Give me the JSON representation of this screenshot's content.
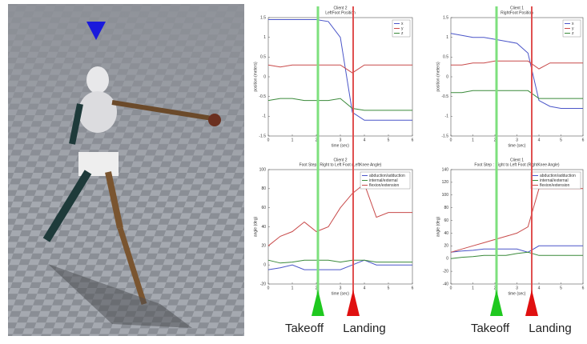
{
  "chart_data": [
    {
      "type": "line",
      "title": "Client 2",
      "subtitle": "LeftFoot Position",
      "xlabel": "time (sec)",
      "ylabel": "position (meters)",
      "x": [
        0,
        0.5,
        1,
        1.5,
        2,
        2.5,
        3,
        3.5,
        4,
        4.5,
        5,
        5.5,
        6
      ],
      "xlim": [
        0,
        6
      ],
      "xticks": [
        0,
        1,
        2,
        3,
        4,
        5,
        6
      ],
      "ylim": [
        -1.5,
        1.5
      ],
      "yticks": [
        -1.5,
        -1,
        -0.5,
        0,
        0.5,
        1,
        1.5
      ],
      "series": [
        {
          "name": "x",
          "color": "#4a55c8",
          "values": [
            1.45,
            1.45,
            1.45,
            1.45,
            1.45,
            1.4,
            1.0,
            -0.9,
            -1.1,
            -1.1,
            -1.1,
            -1.1,
            -1.1
          ]
        },
        {
          "name": "y",
          "color": "#c84a4a",
          "values": [
            0.3,
            0.25,
            0.3,
            0.3,
            0.3,
            0.3,
            0.3,
            0.1,
            0.3,
            0.3,
            0.3,
            0.3,
            0.3
          ]
        },
        {
          "name": "z",
          "color": "#3a8a3a",
          "values": [
            -0.6,
            -0.55,
            -0.55,
            -0.6,
            -0.6,
            -0.6,
            -0.55,
            -0.8,
            -0.85,
            -0.85,
            -0.85,
            -0.85,
            -0.85
          ]
        }
      ]
    },
    {
      "type": "line",
      "title": "Client 1",
      "subtitle": "RightFoot Position",
      "xlabel": "time (sec)",
      "ylabel": "position (meters)",
      "x": [
        0,
        0.5,
        1,
        1.5,
        2,
        2.5,
        3,
        3.5,
        4,
        4.5,
        5,
        5.5,
        6
      ],
      "xlim": [
        0,
        6
      ],
      "xticks": [
        0,
        1,
        2,
        3,
        4,
        5,
        6
      ],
      "ylim": [
        -1.5,
        1.5
      ],
      "yticks": [
        -1.5,
        -1,
        -0.5,
        0,
        0.5,
        1,
        1.5
      ],
      "series": [
        {
          "name": "x",
          "color": "#4a55c8",
          "values": [
            1.1,
            1.05,
            1.0,
            1.0,
            0.95,
            0.9,
            0.85,
            0.6,
            -0.6,
            -0.75,
            -0.8,
            -0.8,
            -0.8
          ]
        },
        {
          "name": "y",
          "color": "#c84a4a",
          "values": [
            0.3,
            0.3,
            0.35,
            0.35,
            0.4,
            0.4,
            0.4,
            0.4,
            0.2,
            0.35,
            0.35,
            0.35,
            0.35
          ]
        },
        {
          "name": "z",
          "color": "#3a8a3a",
          "values": [
            -0.4,
            -0.4,
            -0.35,
            -0.35,
            -0.35,
            -0.35,
            -0.35,
            -0.35,
            -0.55,
            -0.55,
            -0.55,
            -0.55,
            -0.55
          ]
        }
      ]
    },
    {
      "type": "line",
      "title": "Client 2",
      "subtitle": "Foot Step : Right to Left Foot (LeftKnee Angle)",
      "xlabel": "time (sec)",
      "ylabel": "angle (deg)",
      "x": [
        0,
        0.5,
        1,
        1.5,
        2,
        2.5,
        3,
        3.5,
        4,
        4.5,
        5,
        5.5,
        6
      ],
      "xlim": [
        0,
        6
      ],
      "xticks": [
        0,
        1,
        2,
        3,
        4,
        5,
        6
      ],
      "ylim": [
        -20,
        100
      ],
      "yticks": [
        -20,
        0,
        20,
        40,
        60,
        80,
        100
      ],
      "series": [
        {
          "name": "abduction/adduction",
          "color": "#4a55c8",
          "values": [
            -5,
            -3,
            0,
            -5,
            -5,
            -5,
            -5,
            0,
            5,
            0,
            0,
            0,
            0
          ]
        },
        {
          "name": "internal/external",
          "color": "#3a8a3a",
          "values": [
            5,
            2,
            3,
            5,
            5,
            5,
            3,
            5,
            5,
            3,
            3,
            3,
            3
          ]
        },
        {
          "name": "flexion/extension",
          "color": "#c84a4a",
          "values": [
            20,
            30,
            35,
            45,
            35,
            40,
            60,
            75,
            85,
            50,
            55,
            55,
            55
          ]
        }
      ]
    },
    {
      "type": "line",
      "title": "Client 1",
      "subtitle": "Foot Step : Right to Left Foot (RightKnee Angle)",
      "xlabel": "time (sec)",
      "ylabel": "angle (deg)",
      "x": [
        0,
        0.5,
        1,
        1.5,
        2,
        2.5,
        3,
        3.5,
        4,
        4.5,
        5,
        5.5,
        6
      ],
      "xlim": [
        0,
        6
      ],
      "xticks": [
        0,
        1,
        2,
        3,
        4,
        5,
        6
      ],
      "ylim": [
        -40,
        140
      ],
      "yticks": [
        -40,
        -20,
        0,
        20,
        40,
        60,
        80,
        100,
        120,
        140
      ],
      "series": [
        {
          "name": "abduction/adduction",
          "color": "#4a55c8",
          "values": [
            10,
            12,
            13,
            15,
            15,
            15,
            15,
            10,
            20,
            20,
            20,
            20,
            20
          ]
        },
        {
          "name": "internal/external",
          "color": "#3a8a3a",
          "values": [
            0,
            2,
            3,
            5,
            5,
            5,
            8,
            10,
            5,
            5,
            5,
            5,
            5
          ]
        },
        {
          "name": "flexion/extension",
          "color": "#c84a4a",
          "values": [
            10,
            15,
            20,
            25,
            30,
            35,
            40,
            50,
            110,
            110,
            110,
            110,
            110
          ]
        }
      ]
    }
  ],
  "annotations": [
    "Takeoff",
    "Landing",
    "Takeoff",
    "Landing"
  ]
}
